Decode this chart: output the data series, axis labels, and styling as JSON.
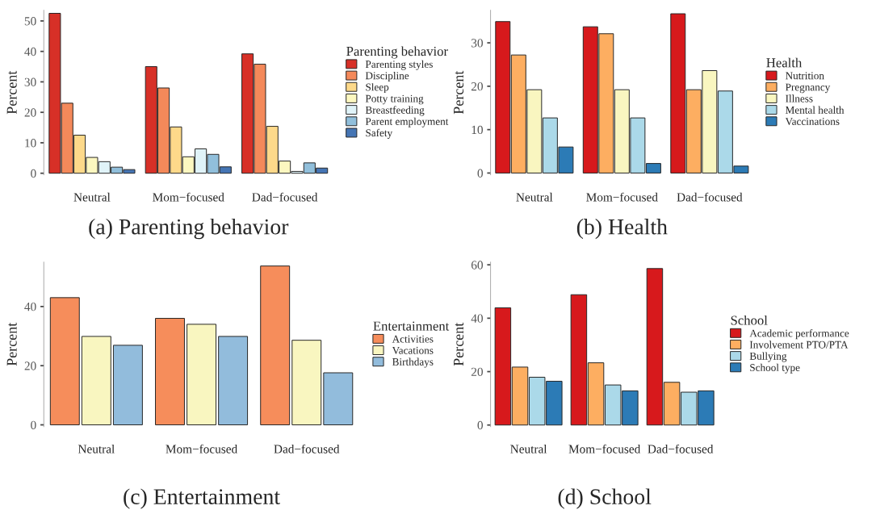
{
  "chart_data": [
    {
      "type": "bar",
      "title": "(a) Parenting behavior",
      "ylabel": "Percent",
      "legend_title": "Parenting behavior",
      "legend": "right",
      "categories": [
        "Neutral",
        "Mom−focused",
        "Dad−focused"
      ],
      "ylim": [
        -0.5,
        53.5
      ],
      "yticks": [
        0,
        10,
        20,
        30,
        40,
        50
      ],
      "grid": false,
      "series": [
        {
          "name": "Parenting styles",
          "color": "#d73027",
          "values": [
            52.5,
            35,
            39.2
          ]
        },
        {
          "name": "Discipline",
          "color": "#f4895a",
          "values": [
            23,
            28,
            35.8
          ]
        },
        {
          "name": "Sleep",
          "color": "#fdd98a",
          "values": [
            12.5,
            15.2,
            15.4
          ]
        },
        {
          "name": "Potty training",
          "color": "#fcf7c0",
          "values": [
            5.2,
            5.4,
            4.0
          ]
        },
        {
          "name": "Breastfeeding",
          "color": "#e0f3f8",
          "values": [
            3.8,
            8.0,
            0.6
          ]
        },
        {
          "name": "Parent employment",
          "color": "#91bfdb",
          "values": [
            2.0,
            6.2,
            3.4
          ]
        },
        {
          "name": "Safety",
          "color": "#4575b4",
          "values": [
            1.2,
            2.1,
            1.7
          ]
        }
      ]
    },
    {
      "type": "bar",
      "title": "(b) Health",
      "ylabel": "Percent",
      "legend_title": "Health",
      "legend": "right",
      "categories": [
        "Neutral",
        "Mom−focused",
        "Dad−focused"
      ],
      "ylim": [
        -0.4,
        37.5
      ],
      "yticks": [
        0,
        10,
        20,
        30
      ],
      "grid": false,
      "series": [
        {
          "name": "Nutrition",
          "color": "#d7191c",
          "values": [
            34.9,
            33.7,
            36.7
          ]
        },
        {
          "name": "Pregnancy",
          "color": "#fdae61",
          "values": [
            27.2,
            32.1,
            19.2
          ]
        },
        {
          "name": "Illness",
          "color": "#f9f6c0",
          "values": [
            19.2,
            19.2,
            23.6
          ]
        },
        {
          "name": "Mental health",
          "color": "#abd9e9",
          "values": [
            12.7,
            12.7,
            18.9
          ]
        },
        {
          "name": "Vaccinations",
          "color": "#2c7bb6",
          "values": [
            6.0,
            2.2,
            1.6
          ]
        }
      ]
    },
    {
      "type": "bar",
      "title": "(c) Entertainment",
      "ylabel": "Percent",
      "legend_title": "Entertainment",
      "legend": "right",
      "categories": [
        "Neutral",
        "Mom−focused",
        "Dad−focused"
      ],
      "ylim": [
        -0.6,
        55
      ],
      "yticks": [
        0,
        20,
        40
      ],
      "grid": false,
      "series": [
        {
          "name": "Activities",
          "color": "#f68d5b",
          "values": [
            43.0,
            36.0,
            53.7
          ]
        },
        {
          "name": "Vacations",
          "color": "#f9f6c0",
          "values": [
            29.9,
            34.0,
            28.6
          ]
        },
        {
          "name": "Birthdays",
          "color": "#92bcdc",
          "values": [
            26.9,
            29.9,
            17.6
          ]
        }
      ]
    },
    {
      "type": "bar",
      "title": "(d) School",
      "ylabel": "Percent",
      "legend_title": "School",
      "legend": "right",
      "categories": [
        "Neutral",
        "Mom−focused",
        "Dad−focused"
      ],
      "ylim": [
        -0.6,
        61
      ],
      "yticks": [
        0,
        20,
        40,
        60
      ],
      "grid": false,
      "series": [
        {
          "name": "Academic performance",
          "color": "#d7191c",
          "values": [
            43.9,
            48.8,
            58.6
          ]
        },
        {
          "name": "Involvement PTO/PTA",
          "color": "#fdae61",
          "values": [
            21.7,
            23.3,
            16.0
          ]
        },
        {
          "name": "Bullying",
          "color": "#abd9e9",
          "values": [
            17.9,
            15.0,
            12.3
          ]
        },
        {
          "name": "School type",
          "color": "#2c7bb6",
          "values": [
            16.4,
            12.8,
            12.8
          ]
        }
      ]
    }
  ]
}
